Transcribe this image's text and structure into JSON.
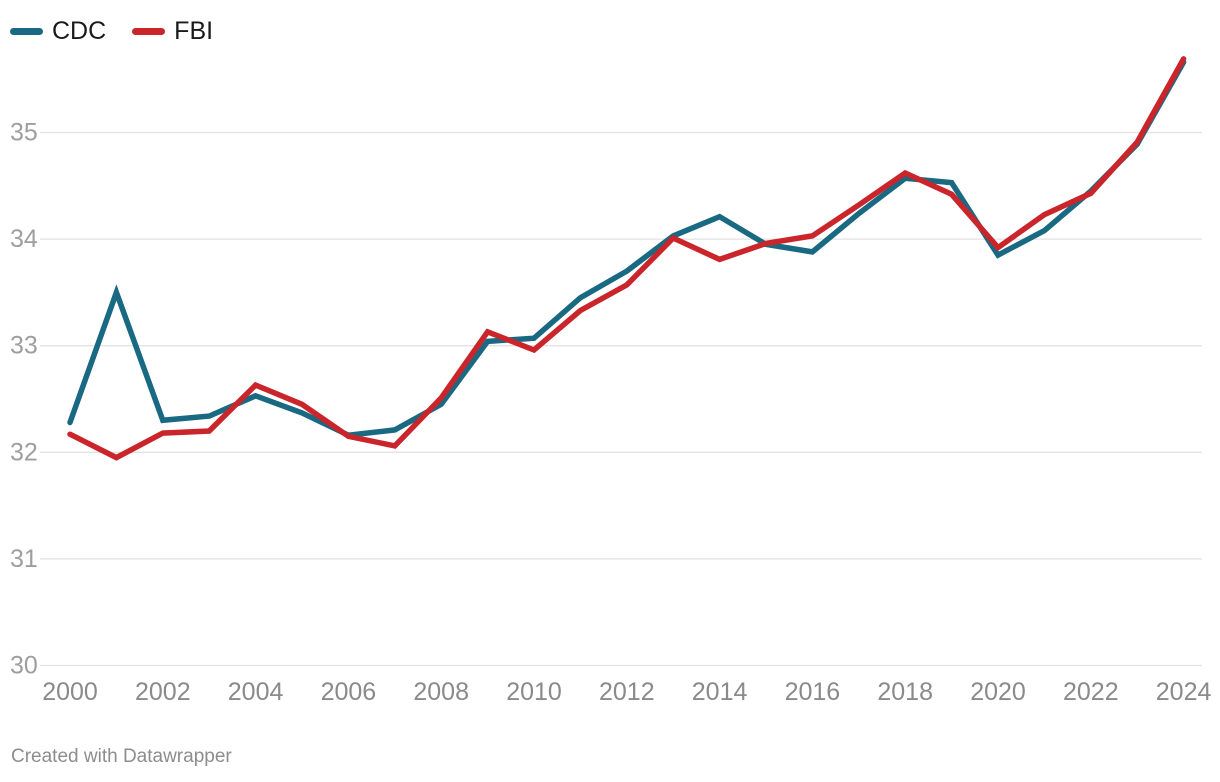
{
  "legend": {
    "items": [
      {
        "label": "CDC"
      },
      {
        "label": "FBI"
      }
    ]
  },
  "footer": {
    "credit": "Created with Datawrapper"
  },
  "chart_data": {
    "type": "line",
    "x": [
      2000,
      2001,
      2002,
      2003,
      2004,
      2005,
      2006,
      2007,
      2008,
      2009,
      2010,
      2011,
      2012,
      2013,
      2014,
      2015,
      2016,
      2017,
      2018,
      2019,
      2020,
      2021,
      2022,
      2023,
      2024
    ],
    "series": [
      {
        "name": "CDC",
        "color": "#1a6982",
        "values": [
          32.28,
          33.5,
          32.3,
          32.34,
          32.53,
          32.37,
          32.16,
          32.21,
          32.45,
          33.04,
          33.07,
          33.45,
          33.7,
          34.03,
          34.21,
          33.95,
          33.88,
          34.24,
          34.57,
          34.53,
          33.85,
          34.08,
          34.45,
          34.89,
          35.66
        ]
      },
      {
        "name": "FBI",
        "color": "#c9252b",
        "values": [
          32.17,
          31.95,
          32.18,
          32.2,
          32.63,
          32.45,
          32.15,
          32.06,
          32.51,
          33.13,
          32.96,
          33.33,
          33.57,
          34.01,
          33.81,
          33.96,
          34.03,
          34.32,
          34.62,
          34.42,
          33.92,
          34.23,
          34.43,
          34.91,
          35.69
        ]
      }
    ],
    "title": "",
    "xlabel": "",
    "ylabel": "",
    "yticks": [
      30,
      31,
      32,
      33,
      34,
      35
    ],
    "xticks": [
      2000,
      2002,
      2004,
      2006,
      2008,
      2010,
      2012,
      2014,
      2016,
      2018,
      2020,
      2022,
      2024
    ],
    "ylim": [
      30,
      35.9
    ],
    "xlim": [
      2000,
      2024
    ],
    "grid": "horizontal",
    "legend_position": "top-left",
    "grid_color": "#e2e2e2",
    "ytick_color": "#9e9e9e",
    "xtick_color": "#8a8a8a"
  }
}
